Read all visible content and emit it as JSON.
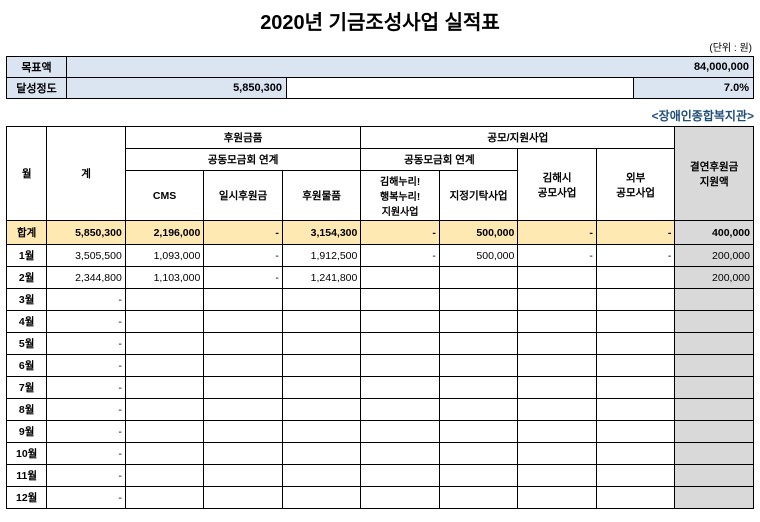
{
  "title": "2020년 기금조성사업 실적표",
  "unit_label": "(단위 : 원)",
  "facility": "<장애인종합복지관>",
  "summary": {
    "target_label": "목표액",
    "target_value": "84,000,000",
    "progress_label": "달성정도",
    "progress_value": "5,850,300",
    "progress_pct": "7.0%"
  },
  "headers": {
    "month": "월",
    "total": "계",
    "sponsor": "후원금품",
    "project": "공모/지원사업",
    "linked": "공동모금회 연계",
    "cms": "CMS",
    "one_time": "일시후원금",
    "goods": "후원물품",
    "gimhae_nuri": "김해누리!\n행복누리!\n지원사업",
    "designated": "지정기탁사업",
    "gimhae_city": "김해시\n공모사업",
    "external": "외부\n공모사업",
    "anti_smoking": "결연후원금\n지원액"
  },
  "total_label": "합계",
  "total_row": [
    "5,850,300",
    "2,196,000",
    "-",
    "3,154,300",
    "-",
    "500,000",
    "-",
    "-",
    "400,000"
  ],
  "rows": [
    {
      "m": "1월",
      "v": [
        "3,505,500",
        "1,093,000",
        "-",
        "1,912,500",
        "-",
        "500,000",
        "-",
        "-",
        "200,000"
      ]
    },
    {
      "m": "2월",
      "v": [
        "2,344,800",
        "1,103,000",
        "-",
        "1,241,800",
        "",
        "",
        "",
        "",
        "200,000"
      ]
    },
    {
      "m": "3월",
      "v": [
        "-",
        "",
        "",
        "",
        "",
        "",
        "",
        "",
        ""
      ]
    },
    {
      "m": "4월",
      "v": [
        "-",
        "",
        "",
        "",
        "",
        "",
        "",
        "",
        ""
      ]
    },
    {
      "m": "5월",
      "v": [
        "-",
        "",
        "",
        "",
        "",
        "",
        "",
        "",
        ""
      ]
    },
    {
      "m": "6월",
      "v": [
        "-",
        "",
        "",
        "",
        "",
        "",
        "",
        "",
        ""
      ]
    },
    {
      "m": "7월",
      "v": [
        "-",
        "",
        "",
        "",
        "",
        "",
        "",
        "",
        ""
      ]
    },
    {
      "m": "8월",
      "v": [
        "-",
        "",
        "",
        "",
        "",
        "",
        "",
        "",
        ""
      ]
    },
    {
      "m": "9월",
      "v": [
        "-",
        "",
        "",
        "",
        "",
        "",
        "",
        "",
        ""
      ]
    },
    {
      "m": "10월",
      "v": [
        "-",
        "",
        "",
        "",
        "",
        "",
        "",
        "",
        ""
      ]
    },
    {
      "m": "11월",
      "v": [
        "-",
        "",
        "",
        "",
        "",
        "",
        "",
        "",
        ""
      ]
    },
    {
      "m": "12월",
      "v": [
        "-",
        "",
        "",
        "",
        "",
        "",
        "",
        "",
        ""
      ]
    }
  ],
  "style": {
    "header_blue": "#dbe5f1",
    "highlight_row": "#ffe9b3",
    "gray_col": "#d9d9d9",
    "facility_color": "#1f4e79"
  }
}
